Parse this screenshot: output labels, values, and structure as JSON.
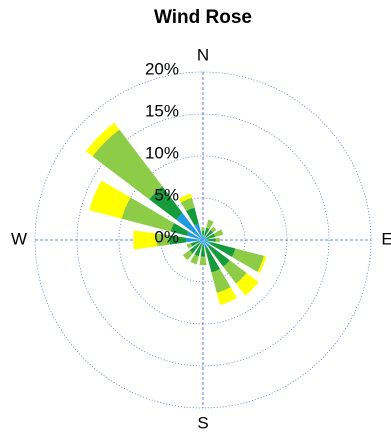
{
  "chart_data": {
    "type": "wind-rose",
    "title": "Wind Rose",
    "categories": [
      "N",
      null,
      null,
      null,
      "E",
      null,
      null,
      null,
      "S",
      null,
      null,
      null,
      "W",
      null,
      null,
      null
    ],
    "series": [
      {
        "color": "#1e9be0",
        "values": [
          0.5,
          0.5,
          0.5,
          0.5,
          0.5,
          1,
          1,
          1,
          0.5,
          0.5,
          0.5,
          0.5,
          2,
          2,
          4,
          2
        ]
      },
      {
        "color": "#159a3c",
        "values": [
          0.6,
          1,
          1,
          1,
          1,
          3,
          3,
          3,
          1.5,
          1.5,
          1.5,
          1,
          2,
          2,
          4,
          2
        ]
      },
      {
        "color": "#8ccc46",
        "values": [
          0.4,
          1,
          0.5,
          1,
          0.5,
          3.5,
          2.5,
          2.5,
          1,
          1,
          1,
          0.5,
          1.5,
          6,
          8.5,
          1.2
        ]
      },
      {
        "color": "#ffff00",
        "values": [
          0,
          0,
          0,
          0,
          0,
          0.3,
          1.8,
          1.5,
          0,
          0,
          0,
          0,
          2.8,
          4,
          1,
          0.5
        ]
      }
    ],
    "ylim": [
      0,
      20
    ],
    "yticks": [
      {
        "value": 0,
        "label": "0%"
      },
      {
        "value": 5,
        "label": "5%"
      },
      {
        "value": 10,
        "label": "10%"
      },
      {
        "value": 15,
        "label": "15%"
      },
      {
        "value": 20,
        "label": "20%"
      }
    ],
    "grid": true
  }
}
